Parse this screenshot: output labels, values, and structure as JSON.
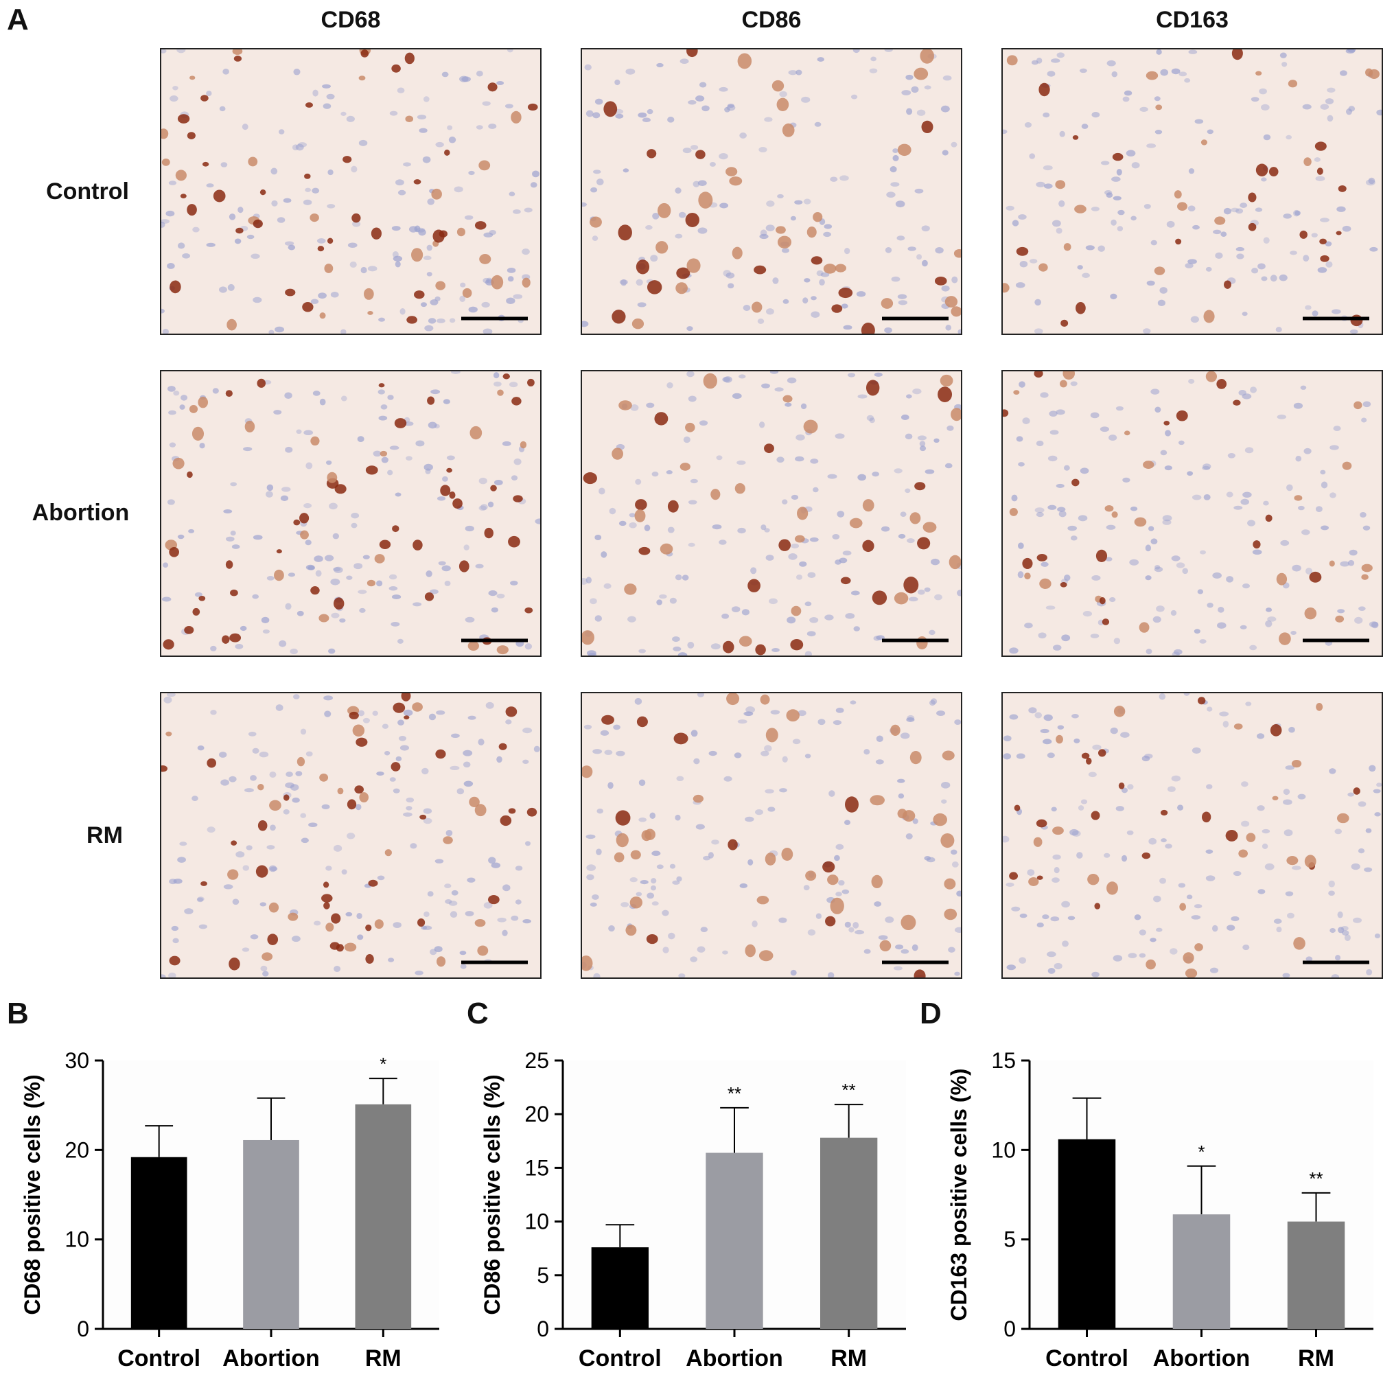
{
  "panel_letters": {
    "a": "A",
    "b": "B",
    "c": "C",
    "d": "D"
  },
  "micrographs": {
    "columns": [
      "CD68",
      "CD86",
      "CD163"
    ],
    "rows": [
      "Control",
      "Abortion",
      "RM"
    ]
  },
  "colors": {
    "control_bar": "#000000",
    "abortion_bar": "#9b9ca3",
    "rm_bar": "#7f7f7f",
    "stain_brown": "#8a2a12",
    "stain_light": "#c98b6a",
    "nucleus_blue": "#9aa0cf",
    "tissue_bg": "#f5e9e3"
  },
  "chart_data": [
    {
      "type": "bar",
      "panel": "B",
      "categories": [
        "Control",
        "Abortion",
        "RM"
      ],
      "values": [
        19.2,
        21.1,
        25.1
      ],
      "errors": [
        3.5,
        4.7,
        2.9
      ],
      "significance": [
        "",
        "",
        "*"
      ],
      "ylabel": "CD68  positive cells (%)",
      "ylim": [
        0,
        30
      ],
      "yticks": [
        "0",
        "10",
        "20",
        "30"
      ],
      "tick_values": [
        0,
        10,
        20,
        30
      ]
    },
    {
      "type": "bar",
      "panel": "C",
      "categories": [
        "Control",
        "Abortion",
        "RM"
      ],
      "values": [
        7.6,
        16.4,
        17.8
      ],
      "errors": [
        2.1,
        4.2,
        3.1
      ],
      "significance": [
        "",
        "**",
        "**"
      ],
      "ylabel": "CD86 positive cells (%)",
      "ylim": [
        0,
        25
      ],
      "yticks": [
        "0",
        "5",
        "10",
        "15",
        "20",
        "25"
      ],
      "tick_values": [
        0,
        5,
        10,
        15,
        20,
        25
      ]
    },
    {
      "type": "bar",
      "panel": "D",
      "categories": [
        "Control",
        "Abortion",
        "RM"
      ],
      "values": [
        10.6,
        6.4,
        6.0
      ],
      "errors": [
        2.3,
        2.7,
        1.6
      ],
      "significance": [
        "",
        "*",
        "**"
      ],
      "ylabel": "CD163 positive cells (%)",
      "ylim": [
        0,
        15
      ],
      "yticks": [
        "0",
        "5",
        "10",
        "15"
      ],
      "tick_values": [
        0,
        5,
        10,
        15
      ]
    }
  ]
}
